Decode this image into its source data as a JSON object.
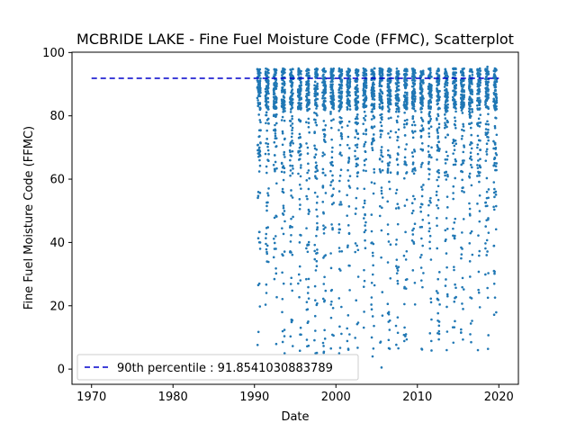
{
  "chart_data": {
    "type": "scatter",
    "title": "MCBRIDE LAKE - Fine Fuel Moisture Code (FFMC), Scatterplot",
    "xlabel": "Date",
    "ylabel": "Fine Fuel Moisture Code (FFMC)",
    "xlim": [
      1967.6,
      2022.4
    ],
    "ylim": [
      -4.8,
      100.1
    ],
    "xticks": [
      1970,
      1980,
      1990,
      2000,
      2010,
      2020
    ],
    "yticks": [
      0,
      20,
      40,
      60,
      80,
      100
    ],
    "grid": false,
    "legend_position": "lower-left",
    "point_color": "#1f77b4",
    "line_color": "#0000cc",
    "series": [
      {
        "kind": "scatter",
        "description_years": [
          1990,
          2019
        ],
        "season_fraction": [
          0.35,
          0.75
        ],
        "summary": {
          "dense_band": [
            82,
            95
          ],
          "range": [
            0,
            95.5
          ]
        },
        "sample_points": [
          [
            1990.5,
            91.0
          ],
          [
            1990.6,
            27.0
          ],
          [
            1990.7,
            40.0
          ],
          [
            1991.5,
            62.0
          ],
          [
            1992.6,
            42.0
          ],
          [
            1993.4,
            18.0
          ],
          [
            1993.7,
            5.0
          ],
          [
            1994.5,
            94.5
          ],
          [
            1995.5,
            88.0
          ],
          [
            1996.6,
            15.0
          ],
          [
            1997.5,
            5.0
          ],
          [
            1998.4,
            62.0
          ],
          [
            1999.5,
            25.0
          ],
          [
            2000.4,
            5.0
          ],
          [
            2001.5,
            17.0
          ],
          [
            2002.5,
            1.0
          ],
          [
            2004.4,
            10.0
          ],
          [
            2004.5,
            4.0
          ],
          [
            2005.6,
            0.5
          ],
          [
            2006.5,
            18.0
          ],
          [
            2007.6,
            27.0
          ],
          [
            2008.6,
            11.0
          ],
          [
            2009.5,
            50.0
          ],
          [
            2010.5,
            28.0
          ],
          [
            2011.4,
            60.0
          ],
          [
            2012.5,
            22.0
          ],
          [
            2013.6,
            6.0
          ],
          [
            2014.5,
            95.0
          ],
          [
            2015.5,
            38.0
          ],
          [
            2016.6,
            8.5
          ],
          [
            2017.5,
            25.0
          ],
          [
            2018.5,
            36.0
          ],
          [
            2018.6,
            95.5
          ]
        ]
      },
      {
        "kind": "hline",
        "name": "90th percentile : 91.8541030883789",
        "y": 91.8541030883789,
        "x": [
          1970,
          2020
        ]
      }
    ]
  }
}
